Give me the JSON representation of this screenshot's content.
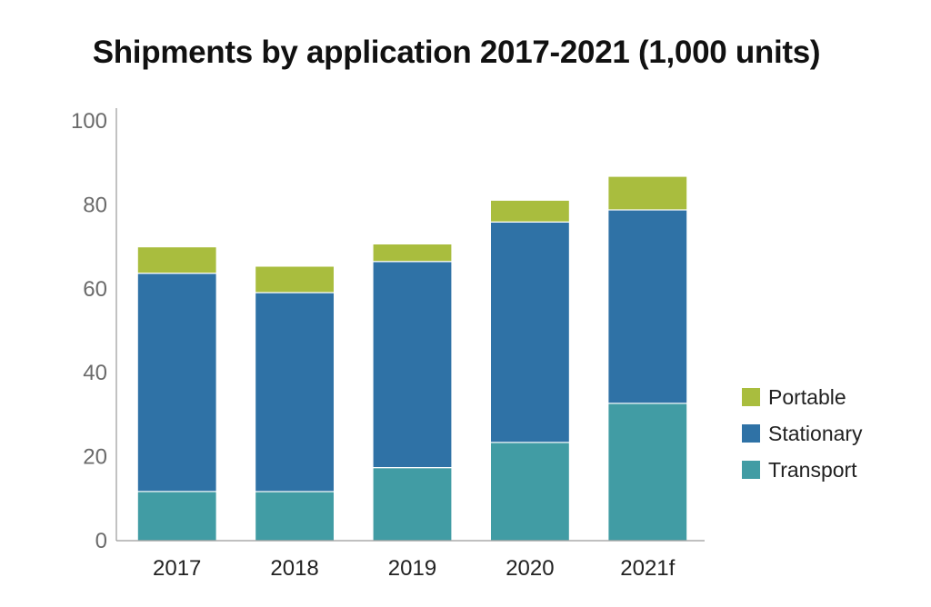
{
  "chart_data": {
    "type": "bar",
    "stacked": true,
    "title": "Shipments by application 2017-2021 (1,000 units)",
    "xlabel": "",
    "ylabel": "",
    "categories": [
      "2017",
      "2018",
      "2019",
      "2020",
      "2021f"
    ],
    "series": [
      {
        "name": "Transport",
        "color": "#419ca4",
        "values": [
          11.7,
          11.7,
          17.4,
          23.4,
          32.7
        ]
      },
      {
        "name": "Stationary",
        "color": "#2f72a6",
        "values": [
          52.0,
          47.4,
          49.1,
          52.5,
          46.1
        ]
      },
      {
        "name": "Portable",
        "color": "#a9bd3e",
        "values": [
          6.3,
          6.3,
          4.2,
          5.2,
          8.0
        ]
      }
    ],
    "ylim": [
      0,
      100
    ],
    "yticks": [
      "0",
      "20",
      "40",
      "60",
      "80",
      "100"
    ],
    "grid": false,
    "legend": {
      "position": "right",
      "order": [
        "Portable",
        "Stationary",
        "Transport"
      ]
    }
  }
}
